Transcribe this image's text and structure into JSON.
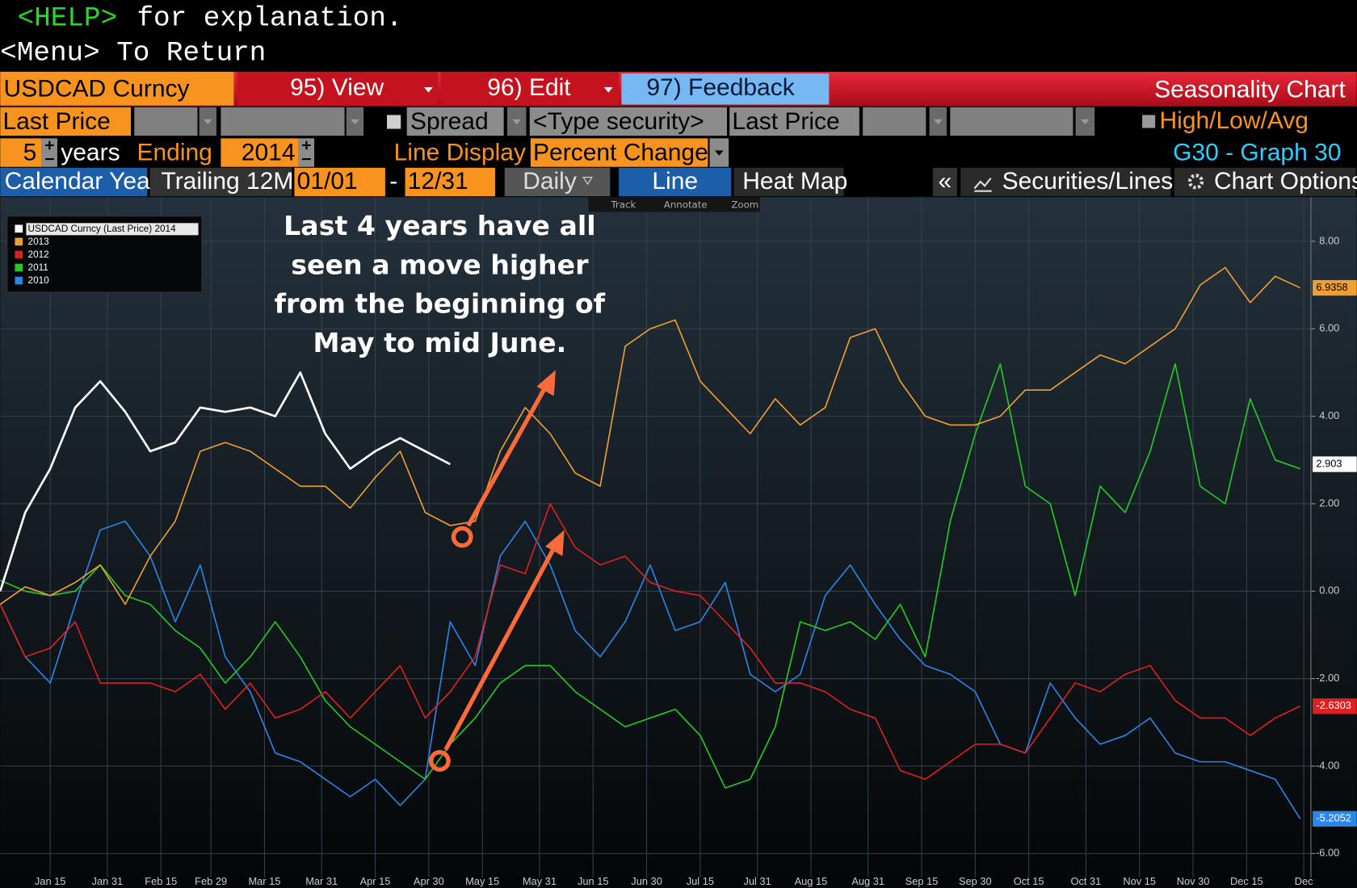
{
  "header": {
    "help_key": "<HELP>",
    "help_text": "for explanation.",
    "menu_line": "<Menu> To Return"
  },
  "toolbar": {
    "security": "USDCAD Curncy",
    "view": "95) View",
    "edit": "96) Edit",
    "feedback": "97) Feedback",
    "screen_title": "Seasonality Chart"
  },
  "settings": {
    "field1": "Last Price",
    "spread": "Spread",
    "type_security": "<Type security>",
    "field2": "Last Price",
    "high_low_avg": "High/Low/Avg",
    "years": "5",
    "years_label": "years",
    "ending_label": "Ending",
    "ending_year": "2014",
    "line_display_label": "Line Display",
    "line_display": "Percent Change",
    "graph": "G30 - Graph 30"
  },
  "tabs": {
    "calendar_year": "Calendar Year",
    "trailing": "Trailing 12M",
    "start": "01/01",
    "dash": "-",
    "end": "12/31",
    "frequency": "Daily",
    "line": "Line",
    "heat_map": "Heat Map",
    "collapse": "«",
    "securities_lines": "Securities/Lines",
    "chart_options": "Chart Options"
  },
  "chart_tools": [
    "Track",
    "Annotate",
    "Zoom"
  ],
  "chart_data": {
    "type": "line",
    "annotation": [
      "Last 4 years have all",
      "seen a move higher",
      "from the beginning of",
      "May to mid June."
    ],
    "x": [
      1,
      8,
      15,
      22,
      29,
      36,
      43,
      50,
      57,
      64,
      71,
      78,
      85,
      92,
      99,
      106,
      113,
      120,
      127,
      134,
      141,
      148,
      155,
      162,
      169,
      176,
      183,
      190,
      197,
      204,
      211,
      218,
      225,
      232,
      239,
      246,
      253,
      260,
      267,
      274,
      281,
      288,
      295,
      302,
      309,
      316,
      323,
      330,
      337,
      344,
      351,
      358,
      365
    ],
    "xlim": [
      1,
      368
    ],
    "xticks": [
      {
        "value": 15,
        "label": "Jan 15"
      },
      {
        "value": 31,
        "label": "Jan 31"
      },
      {
        "value": 46,
        "label": "Feb 15"
      },
      {
        "value": 60,
        "label": "Feb 29"
      },
      {
        "value": 75,
        "label": "Mar 15"
      },
      {
        "value": 91,
        "label": "Mar 31"
      },
      {
        "value": 106,
        "label": "Apr 15"
      },
      {
        "value": 121,
        "label": "Apr 30"
      },
      {
        "value": 136,
        "label": "May 15"
      },
      {
        "value": 152,
        "label": "May 31"
      },
      {
        "value": 167,
        "label": "Jun 15"
      },
      {
        "value": 182,
        "label": "Jun 30"
      },
      {
        "value": 197,
        "label": "Jul 15"
      },
      {
        "value": 213,
        "label": "Jul 31"
      },
      {
        "value": 228,
        "label": "Aug 15"
      },
      {
        "value": 244,
        "label": "Aug 31"
      },
      {
        "value": 259,
        "label": "Sep 15"
      },
      {
        "value": 274,
        "label": "Sep 30"
      },
      {
        "value": 289,
        "label": "Oct 15"
      },
      {
        "value": 305,
        "label": "Oct 31"
      },
      {
        "value": 320,
        "label": "Nov 15"
      },
      {
        "value": 335,
        "label": "Nov 30"
      },
      {
        "value": 350,
        "label": "Dec 15"
      },
      {
        "value": 366,
        "label": "Dec"
      }
    ],
    "ylim": [
      -6.55,
      9.01
    ],
    "yticks": [
      {
        "value": -6,
        "label": "-6.00"
      },
      {
        "value": -4,
        "label": "-4.00"
      },
      {
        "value": -2,
        "label": "-2.00"
      },
      {
        "value": 0,
        "label": "0.00"
      },
      {
        "value": 2,
        "label": "2.00"
      },
      {
        "value": 4,
        "label": "4.00"
      },
      {
        "value": 6,
        "label": "6.00"
      },
      {
        "value": 8,
        "label": "8.00"
      }
    ],
    "grid": true,
    "legend": "top-left",
    "series": [
      {
        "name": "USDCAD Curncy (Last Price) 2014",
        "color": "#ffffff",
        "last_label": "2.903",
        "values": [
          0,
          1.8,
          2.8,
          4.2,
          4.8,
          4.1,
          3.2,
          3.4,
          4.2,
          4.1,
          4.2,
          4.0,
          5.0,
          3.6,
          2.8,
          3.2,
          3.5,
          3.2,
          2.903,
          null,
          null,
          null,
          null,
          null,
          null,
          null,
          null,
          null,
          null,
          null,
          null,
          null,
          null,
          null,
          null,
          null,
          null,
          null,
          null,
          null,
          null,
          null,
          null,
          null,
          null,
          null,
          null,
          null,
          null,
          null,
          null,
          null,
          null
        ]
      },
      {
        "name": "2013",
        "color": "#f0a030",
        "last_label": "6.9358",
        "values": [
          -0.3,
          0.1,
          -0.1,
          0.2,
          0.6,
          -0.3,
          0.8,
          1.6,
          3.2,
          3.4,
          3.2,
          2.8,
          2.4,
          2.4,
          1.9,
          2.6,
          3.2,
          1.8,
          1.5,
          1.6,
          3.2,
          4.2,
          3.6,
          2.7,
          2.4,
          5.6,
          6.0,
          6.2,
          4.8,
          4.2,
          3.6,
          4.4,
          3.8,
          4.2,
          5.8,
          6.0,
          4.8,
          4.0,
          3.8,
          3.8,
          4.0,
          4.6,
          4.6,
          5.0,
          5.4,
          5.2,
          5.6,
          6.0,
          7.0,
          7.4,
          6.6,
          7.2,
          6.9358
        ]
      },
      {
        "name": "2012",
        "color": "#e02020",
        "last_label": "-2.6303",
        "values": [
          -0.3,
          -1.5,
          -1.3,
          -0.7,
          -2.1,
          -2.1,
          -2.1,
          -2.3,
          -1.9,
          -2.7,
          -2.1,
          -2.9,
          -2.7,
          -2.3,
          -2.9,
          -2.3,
          -1.7,
          -2.9,
          -2.3,
          -1.5,
          0.6,
          0.4,
          2.0,
          1.0,
          0.6,
          0.8,
          0.2,
          0.0,
          -0.1,
          -0.7,
          -1.3,
          -2.1,
          -2.1,
          -2.3,
          -2.7,
          -2.9,
          -4.1,
          -4.3,
          -3.9,
          -3.5,
          -3.5,
          -3.7,
          -2.9,
          -2.1,
          -2.3,
          -1.9,
          -1.7,
          -2.5,
          -2.9,
          -2.9,
          -3.3,
          -2.9,
          -2.6303
        ]
      },
      {
        "name": "2011",
        "color": "#22cc22",
        "values": [
          0.25,
          0.0,
          -0.1,
          0.0,
          0.6,
          -0.1,
          -0.3,
          -0.9,
          -1.3,
          -2.1,
          -1.5,
          -0.7,
          -1.5,
          -2.5,
          -3.1,
          -3.5,
          -3.9,
          -4.3,
          -3.5,
          -2.9,
          -2.1,
          -1.7,
          -1.7,
          -2.3,
          -2.7,
          -3.1,
          -2.9,
          -2.7,
          -3.3,
          -4.5,
          -4.3,
          -3.1,
          -0.7,
          -0.9,
          -0.7,
          -1.1,
          -0.3,
          -1.5,
          1.6,
          3.6,
          5.2,
          2.4,
          2.0,
          -0.1,
          2.4,
          1.8,
          3.2,
          5.2,
          2.4,
          2.0,
          4.4,
          3.0,
          2.8
        ]
      },
      {
        "name": "2010",
        "color": "#2a86e8",
        "last_label": "-5.2052",
        "values": [
          -0.3,
          -1.5,
          -2.1,
          -0.3,
          1.4,
          1.6,
          0.8,
          -0.7,
          0.6,
          -1.5,
          -2.3,
          -3.7,
          -3.9,
          -4.3,
          -4.7,
          -4.3,
          -4.9,
          -4.3,
          -0.7,
          -1.7,
          0.8,
          1.6,
          0.6,
          -0.9,
          -1.5,
          -0.7,
          0.6,
          -0.9,
          -0.7,
          0.2,
          -1.9,
          -2.3,
          -1.9,
          -0.1,
          0.6,
          -0.3,
          -1.1,
          -1.7,
          -1.9,
          -2.3,
          -3.5,
          -3.7,
          -2.1,
          -2.9,
          -3.5,
          -3.3,
          -2.9,
          -3.7,
          -3.9,
          -3.9,
          -4.1,
          -4.3,
          -5.2052
        ]
      }
    ]
  }
}
